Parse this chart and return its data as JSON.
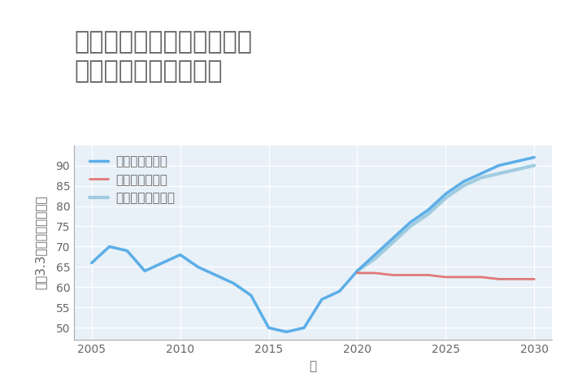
{
  "title": "岐阜県土岐市土岐口中町の\n中古戸建ての価格推移",
  "xlabel": "年",
  "ylabel": "坪（3.3㎡）単価（万円）",
  "title_bg_color": "#ffffff",
  "background_color": "#ffffff",
  "plot_bg_color": "#e8f0f8",
  "good_scenario": {
    "label": "グッドシナリオ",
    "color": "#5baee8",
    "years": [
      2005,
      2006,
      2007,
      2008,
      2009,
      2010,
      2011,
      2012,
      2013,
      2014,
      2015,
      2016,
      2017,
      2018,
      2019,
      2020,
      2021,
      2022,
      2023,
      2024,
      2025,
      2026,
      2027,
      2028,
      2029,
      2030
    ],
    "values": [
      66,
      70,
      69,
      64,
      66,
      68,
      65,
      63,
      61,
      58,
      50,
      49,
      50,
      57,
      59,
      64,
      68,
      72,
      76,
      79,
      83,
      86,
      88,
      90,
      91,
      92
    ]
  },
  "bad_scenario": {
    "label": "バッドシナリオ",
    "color": "#e07878",
    "years": [
      2020,
      2021,
      2022,
      2023,
      2024,
      2025,
      2026,
      2027,
      2028,
      2029,
      2030
    ],
    "values": [
      63.5,
      63.5,
      63.0,
      63.0,
      63.0,
      62.5,
      62.5,
      62.5,
      62.0,
      62.0,
      62.0
    ]
  },
  "normal_scenario": {
    "label": "ノーマルシナリオ",
    "color": "#a0cce0",
    "years": [
      2020,
      2021,
      2022,
      2023,
      2024,
      2025,
      2026,
      2027,
      2028,
      2029,
      2030
    ],
    "values": [
      64,
      67,
      71,
      75,
      78,
      82,
      85,
      87,
      88,
      89,
      90
    ]
  },
  "ylim": [
    47,
    95
  ],
  "xlim": [
    2004,
    2031
  ],
  "yticks": [
    50,
    55,
    60,
    65,
    70,
    75,
    80,
    85,
    90
  ],
  "xticks": [
    2005,
    2010,
    2015,
    2020,
    2025,
    2030
  ],
  "title_fontsize": 22,
  "axis_label_fontsize": 11,
  "tick_fontsize": 10,
  "legend_fontsize": 11,
  "line_width": 2.5
}
